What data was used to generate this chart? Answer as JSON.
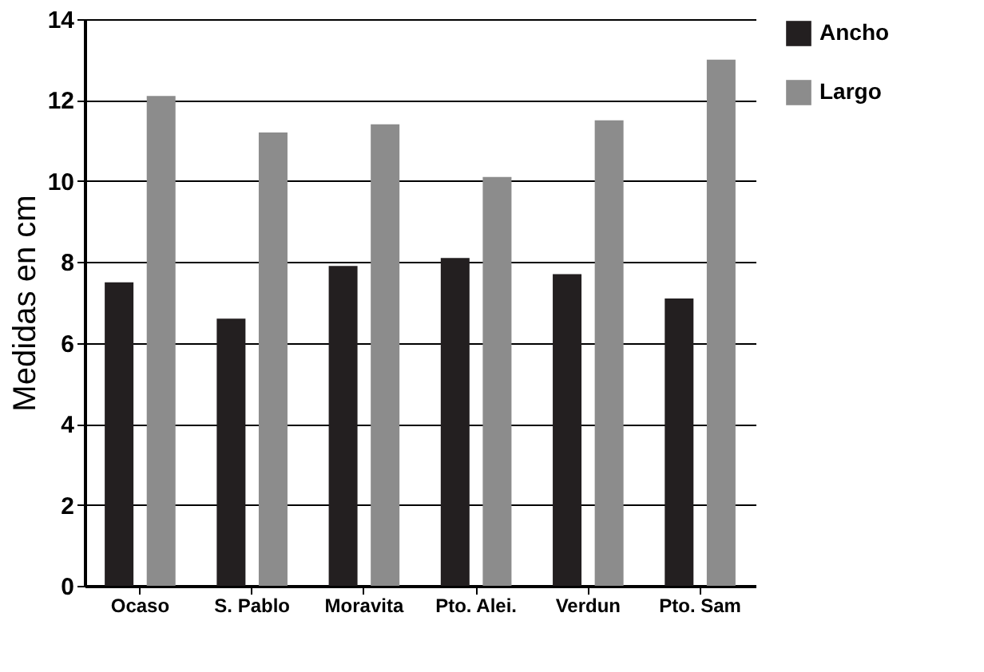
{
  "chart_data": {
    "type": "bar",
    "ylabel": "Medidas en cm",
    "categories": [
      "Ocaso",
      "S. Pablo",
      "Moravita",
      "Pto. Alei.",
      "Verdun",
      "Pto. Sam"
    ],
    "series": [
      {
        "name": "Ancho",
        "color": "#231f20",
        "values": [
          7.5,
          6.6,
          7.9,
          8.1,
          7.7,
          7.1
        ]
      },
      {
        "name": "Largo",
        "color": "#8c8c8c",
        "values": [
          12.1,
          11.2,
          11.4,
          10.1,
          11.5,
          13.0
        ]
      }
    ],
    "ylim": [
      0,
      14
    ],
    "yticks": [
      0,
      2,
      4,
      6,
      8,
      10,
      12,
      14
    ],
    "grid": "y",
    "legend": "right"
  }
}
